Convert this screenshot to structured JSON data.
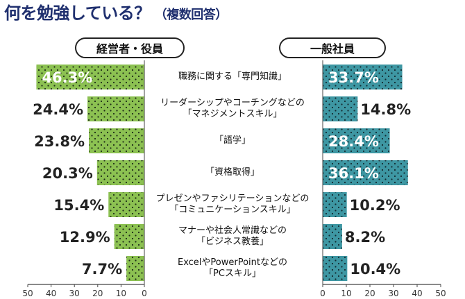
{
  "title": "何を勉強している？",
  "subtitle": "（複数回答）",
  "colors": {
    "left_bar": "#8cc152",
    "right_bar": "#3e97a3",
    "title": "#1f2f6e",
    "axis": "#444444"
  },
  "chart_data": [
    {
      "type": "bar",
      "orientation": "horizontal",
      "direction": "right-to-left",
      "header": "経営者・役員",
      "categories": [
        "職務に関する「専門知識」",
        "リーダーシップやコーチングなどの「マネジメントスキル」",
        "「語学」",
        "「資格取得」",
        "プレゼンやファシリテーションなどの「コミュニケーションスキル」",
        "マナーや社会人常識などの「ビジネス教養」",
        "ExcelやPowerPointなどの「PCスキル」"
      ],
      "values": [
        46.3,
        24.4,
        23.8,
        20.3,
        15.4,
        12.9,
        7.7
      ],
      "value_labels": [
        "46.3%",
        "24.4%",
        "23.8%",
        "20.3%",
        "15.4%",
        "12.9%",
        "7.7%"
      ],
      "xlim": [
        0,
        50
      ],
      "ticks": [
        "50",
        "40",
        "30",
        "20",
        "10",
        "0"
      ],
      "grid": false
    },
    {
      "type": "bar",
      "orientation": "horizontal",
      "direction": "left-to-right",
      "header": "一般社員",
      "categories": [
        "職務に関する「専門知識」",
        "リーダーシップやコーチングなどの「マネジメントスキル」",
        "「語学」",
        "「資格取得」",
        "プレゼンやファシリテーションなどの「コミュニケーションスキル」",
        "マナーや社会人常識などの「ビジネス教養」",
        "ExcelやPowerPointなどの「PCスキル」"
      ],
      "values": [
        33.7,
        14.8,
        28.4,
        36.1,
        10.2,
        8.2,
        10.4
      ],
      "value_labels": [
        "33.7%",
        "14.8%",
        "28.4%",
        "36.1%",
        "10.2%",
        "8.2%",
        "10.4%"
      ],
      "xlim": [
        0,
        50
      ],
      "ticks": [
        "0",
        "10",
        "20",
        "30",
        "40",
        "50"
      ],
      "grid": false
    }
  ],
  "center_labels": [
    [
      "職務に関する「専門知識」"
    ],
    [
      "リーダーシップやコーチングなどの",
      "「マネジメントスキル」"
    ],
    [
      "「語学」"
    ],
    [
      "「資格取得」"
    ],
    [
      "プレゼンやファシリテーションなどの",
      "「コミュニケーションスキル」"
    ],
    [
      "マナーや社会人常識などの",
      "「ビジネス教養」"
    ],
    [
      "ExcelやPowerPointなどの",
      "「PCスキル」"
    ]
  ]
}
